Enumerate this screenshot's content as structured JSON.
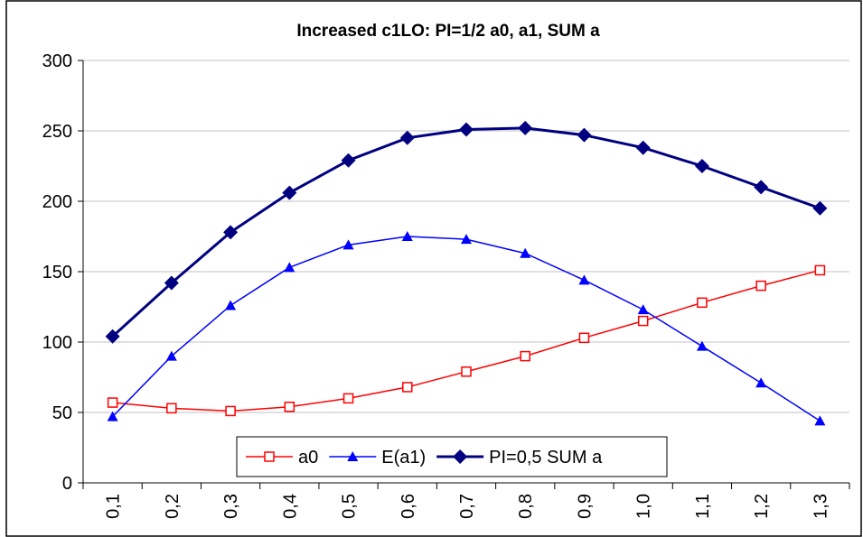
{
  "chart_data": {
    "type": "line",
    "title": "Increased c1LO: PI=1/2 a0, a1, SUM a",
    "categories": [
      "0,1",
      "0,2",
      "0,3",
      "0,4",
      "0,5",
      "0,6",
      "0,7",
      "0,8",
      "0,9",
      "1,0",
      "1,1",
      "1,2",
      "1,3"
    ],
    "series": [
      {
        "name": "a0",
        "color": "#ff0000",
        "marker": "square",
        "values": [
          57,
          53,
          51,
          54,
          60,
          68,
          79,
          90,
          103,
          115,
          128,
          140,
          151
        ]
      },
      {
        "name": "E(a1)",
        "color": "#0000ff",
        "marker": "triangle",
        "values": [
          47,
          90,
          126,
          153,
          169,
          175,
          173,
          163,
          144,
          123,
          97,
          71,
          44
        ]
      },
      {
        "name": "PI=0,5 SUM a",
        "color": "#000080",
        "marker": "diamond",
        "values": [
          104,
          142,
          178,
          206,
          229,
          245,
          251,
          252,
          247,
          238,
          225,
          210,
          195
        ]
      }
    ],
    "ylim": [
      0,
      300
    ],
    "yticks": [
      0,
      50,
      100,
      150,
      200,
      250,
      300
    ],
    "grid": true,
    "legend": "bottom"
  }
}
